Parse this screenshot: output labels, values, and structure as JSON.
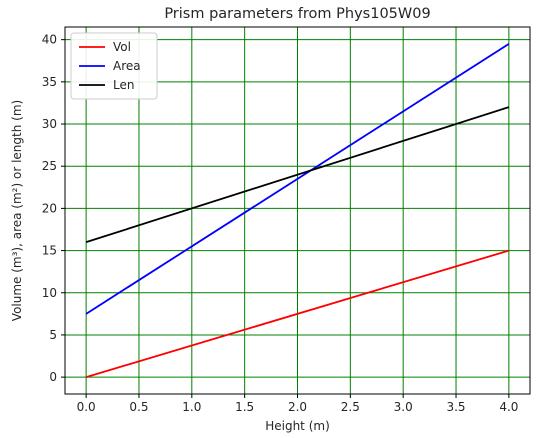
{
  "chart_data": {
    "type": "line",
    "title": "Prism parameters from Phys105W09",
    "xlabel": "Height (m)",
    "ylabel": "Volume (m³), area (m²) or length (m)",
    "xlim": [
      -0.2,
      4.2
    ],
    "ylim": [
      -2,
      41.5
    ],
    "xticks": [
      0.0,
      0.5,
      1.0,
      1.5,
      2.0,
      2.5,
      3.0,
      3.5,
      4.0
    ],
    "xtick_labels": [
      "0.0",
      "0.5",
      "1.0",
      "1.5",
      "2.0",
      "2.5",
      "3.0",
      "3.5",
      "4.0"
    ],
    "yticks": [
      0,
      5,
      10,
      15,
      20,
      25,
      30,
      35,
      40
    ],
    "ytick_labels": [
      "0",
      "5",
      "10",
      "15",
      "20",
      "25",
      "30",
      "35",
      "40"
    ],
    "grid": true,
    "grid_color": "#008000",
    "legend_position": "top-left",
    "series": [
      {
        "name": "Vol",
        "color": "#ff0000",
        "x": [
          0.0,
          4.0
        ],
        "y": [
          0.0,
          15.0
        ]
      },
      {
        "name": "Area",
        "color": "#0000ff",
        "x": [
          0.0,
          4.0
        ],
        "y": [
          7.5,
          39.5
        ]
      },
      {
        "name": "Len",
        "color": "#000000",
        "x": [
          0.0,
          4.0
        ],
        "y": [
          16.0,
          32.0
        ]
      }
    ]
  }
}
